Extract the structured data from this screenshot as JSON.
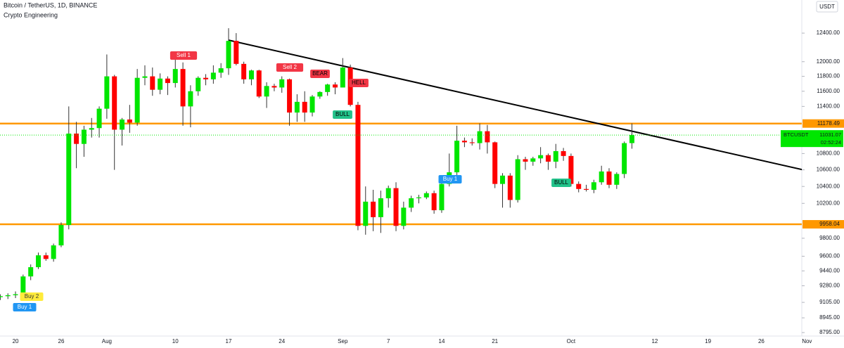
{
  "chart_data": {
    "type": "candlestick",
    "title": "Bitcoin / TetherUS, 1D, BINANCE",
    "subtitle": "Crypto Engineering",
    "currency": "USDT",
    "log": true,
    "grid": false,
    "up_color": "#00e600",
    "down_color": "#ff0000",
    "categories": [
      null,
      null,
      "20",
      null,
      null,
      null,
      null,
      null,
      "26",
      null,
      null,
      null,
      null,
      null,
      "Aug",
      null,
      null,
      null,
      null,
      null,
      null,
      null,
      null,
      "10",
      null,
      null,
      null,
      null,
      null,
      null,
      "17",
      null,
      null,
      null,
      null,
      null,
      null,
      "24",
      null,
      null,
      null,
      null,
      null,
      null,
      null,
      "Sep",
      null,
      null,
      null,
      null,
      null,
      "7",
      null,
      null,
      null,
      null,
      null,
      null,
      "14",
      null,
      null,
      null,
      null,
      null,
      null,
      "21",
      null,
      null,
      null,
      null,
      null,
      null,
      null,
      null,
      null,
      "Oct",
      null,
      null,
      null,
      null,
      null,
      null,
      null,
      null,
      null,
      null,
      "12",
      null,
      null,
      null,
      null,
      null,
      null,
      "19",
      null,
      null,
      null,
      null,
      null,
      null,
      "26",
      null,
      null,
      null,
      null,
      null,
      "Nov"
    ],
    "open": [
      9160,
      9170,
      9180,
      9190,
      9380,
      9480,
      9610,
      9570,
      9720,
      9950,
      11050,
      10920,
      11100,
      11120,
      11370,
      11800,
      11100,
      11230,
      11190,
      11780,
      11800,
      11620,
      11770,
      11710,
      11900,
      11400,
      11600,
      11780,
      11760,
      11850,
      11910,
      12290,
      11970,
      11760,
      11880,
      11530,
      11670,
      11650,
      11760,
      11320,
      11460,
      11320,
      11530,
      11590,
      11690,
      11650,
      11920,
      11420,
      9940,
      10220,
      10040,
      10260,
      10380,
      9940,
      10150,
      10260,
      10270,
      10320,
      10120,
      10430,
      10570,
      10960,
      10940,
      10930,
      11080,
      10940,
      10430,
      10530,
      10240,
      10730,
      10700,
      10740,
      10780,
      10700,
      10830,
      10770,
      10430,
      10370,
      10360,
      10450,
      10580,
      10420,
      10550,
      10930,
      null,
      null,
      null,
      null,
      null,
      null,
      null,
      null,
      null,
      null,
      null,
      null,
      null,
      null,
      null,
      null,
      null,
      null,
      null,
      null,
      null,
      null,
      null
    ],
    "high": [
      9190,
      9200,
      9220,
      9400,
      9510,
      9640,
      9640,
      9740,
      9980,
      11400,
      11200,
      11150,
      11250,
      11400,
      12100,
      11820,
      11250,
      11420,
      11900,
      11950,
      11920,
      11840,
      11800,
      12060,
      11990,
      11680,
      11800,
      11830,
      11950,
      11980,
      12470,
      12400,
      12000,
      11890,
      11890,
      11720,
      11700,
      11800,
      11770,
      11560,
      11600,
      11550,
      11600,
      11700,
      11720,
      12050,
      11960,
      11460,
      10400,
      10360,
      10350,
      10410,
      10450,
      10220,
      10290,
      10300,
      10340,
      10350,
      10460,
      10800,
      11150,
      11000,
      10990,
      11180,
      11160,
      10950,
      10560,
      10560,
      10780,
      10760,
      10760,
      10880,
      10800,
      10920,
      10870,
      10800,
      10460,
      10420,
      10480,
      10650,
      10620,
      10570,
      10950,
      11180,
      null,
      null,
      null,
      null,
      null,
      null,
      null,
      null,
      null,
      null,
      null,
      null,
      null,
      null,
      null,
      null,
      null,
      null,
      null,
      null,
      null,
      null,
      null
    ],
    "low": [
      9130,
      9140,
      9150,
      9170,
      9340,
      9460,
      9550,
      9540,
      9700,
      9900,
      10620,
      10760,
      11000,
      11000,
      11240,
      10600,
      10900,
      11060,
      11150,
      11680,
      11540,
      11560,
      11550,
      11650,
      11150,
      11130,
      11540,
      11680,
      11700,
      11780,
      11820,
      11950,
      11700,
      11680,
      11510,
      11380,
      11600,
      11580,
      11150,
      11200,
      11200,
      11270,
      11500,
      11540,
      11560,
      11650,
      11400,
      9890,
      9840,
      9880,
      9860,
      10150,
      9880,
      9900,
      10100,
      10200,
      10250,
      10080,
      10090,
      10400,
      10500,
      10880,
      10900,
      10850,
      10800,
      10380,
      10150,
      10150,
      10210,
      10600,
      10650,
      10680,
      10600,
      10620,
      10710,
      10400,
      10330,
      10340,
      10320,
      10420,
      10380,
      10370,
      10500,
      10860,
      null,
      null,
      null,
      null,
      null,
      null,
      null,
      null,
      null,
      null,
      null,
      null,
      null,
      null,
      null,
      null,
      null,
      null,
      null,
      null,
      null,
      null,
      null
    ],
    "close": [
      9170,
      9180,
      9190,
      9380,
      9480,
      9610,
      9570,
      9720,
      9950,
      11050,
      10920,
      11100,
      11120,
      11370,
      11800,
      11100,
      11230,
      11190,
      11780,
      11800,
      11620,
      11770,
      11710,
      11900,
      11400,
      11600,
      11780,
      11760,
      11850,
      11910,
      12290,
      11970,
      11760,
      11880,
      11530,
      11670,
      11650,
      11760,
      11320,
      11460,
      11320,
      11530,
      11590,
      11690,
      11650,
      11920,
      11420,
      9940,
      10220,
      10040,
      10260,
      10380,
      9940,
      10150,
      10260,
      10270,
      10320,
      10120,
      10430,
      10570,
      10960,
      10940,
      10930,
      11080,
      10940,
      10430,
      10530,
      10240,
      10730,
      10700,
      10740,
      10780,
      10700,
      10830,
      10770,
      10430,
      10370,
      10360,
      10450,
      10580,
      10420,
      10550,
      10930,
      11031.07,
      null,
      null,
      null,
      null,
      null,
      null,
      null,
      null,
      null,
      null,
      null,
      null,
      null,
      null,
      null,
      null,
      null,
      null,
      null,
      null,
      null,
      null,
      null
    ],
    "ylim": [
      8760,
      12880
    ],
    "yticks": [
      {
        "value": 12400,
        "label": "12400.00"
      },
      {
        "value": 12000,
        "label": "12000.00"
      },
      {
        "value": 11800,
        "label": "11800.00"
      },
      {
        "value": 11600,
        "label": "11600.00"
      },
      {
        "value": 11400,
        "label": "11400.00"
      },
      {
        "value": 10800,
        "label": "10800.00"
      },
      {
        "value": 10600,
        "label": "10600.00"
      },
      {
        "value": 10400,
        "label": "10400.00"
      },
      {
        "value": 10200,
        "label": "10200.00"
      },
      {
        "value": 9800,
        "label": "9800.00"
      },
      {
        "value": 9600,
        "label": "9600.00"
      },
      {
        "value": 9440,
        "label": "9440.00"
      },
      {
        "value": 9280,
        "label": "9280.00"
      },
      {
        "value": 9105,
        "label": "9105.00"
      },
      {
        "value": 8945,
        "label": "8945.00"
      },
      {
        "value": 8795,
        "label": "8795.00"
      }
    ],
    "hlines": [
      {
        "value": 11178.49,
        "color": "#ff9800"
      },
      {
        "value": 9958.04,
        "color": "#ff9800"
      }
    ],
    "last_price": {
      "symbol": "BTCUSDT",
      "countdown": "02:52:24",
      "color": "#00e600"
    },
    "trendline": {
      "x": [
        30,
        106
      ],
      "y": [
        12300,
        10590
      ],
      "color": "#000000"
    },
    "annotations": [
      {
        "text": "Sell 1",
        "color": "#f23645",
        "text_color": "#ffffff"
      },
      {
        "text": "Sell 2",
        "color": "#f23645",
        "text_color": "#ffffff"
      },
      {
        "text": "BEAR",
        "color": "#f23645",
        "text_color": "#000000"
      },
      {
        "text": "HELL",
        "color": "#f23645",
        "text_color": "#000000"
      },
      {
        "text": "BULL",
        "color": "#22c28a",
        "text_color": "#000000"
      },
      {
        "text": "Buy 1",
        "color": "#2196f3",
        "text_color": "#ffffff"
      },
      {
        "text": "BULL",
        "color": "#22c28a",
        "text_color": "#000000"
      },
      {
        "text": "Buy 2",
        "color": "#ffeb3b",
        "text_color": "#333333"
      },
      {
        "text": "Buy 1",
        "color": "#2196f3",
        "text_color": "#ffffff"
      }
    ]
  }
}
